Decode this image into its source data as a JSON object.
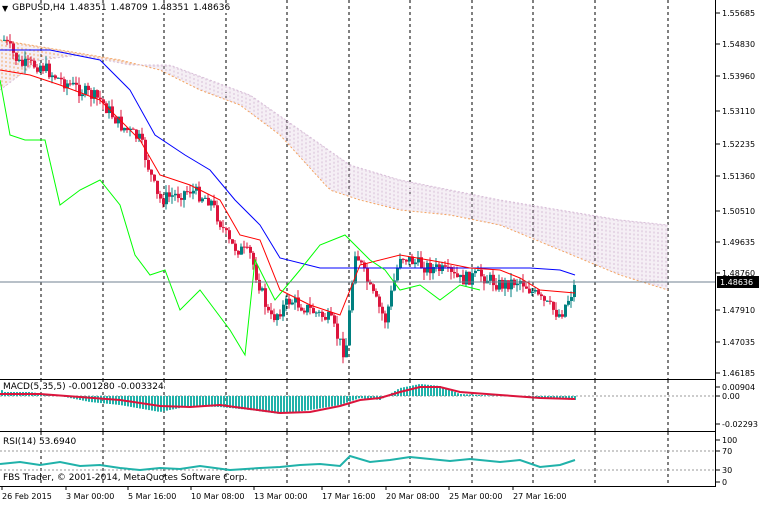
{
  "main": {
    "header": {
      "symbol": "GBPUSD,H4",
      "open": "1.48351",
      "high": "1.48709",
      "low": "1.48351",
      "close": "1.48636"
    },
    "price_levels": [
      "1.55685",
      "1.54830",
      "1.53960",
      "1.53110",
      "1.52235",
      "1.51360",
      "1.50510",
      "1.49635",
      "1.48760",
      "1.47910",
      "1.47035",
      "1.46185"
    ],
    "current_price": "1.48636"
  },
  "macd": {
    "label": "MACD(5,35,5) -0.001280 -0.003324",
    "levels": [
      "0.00904",
      "0.00",
      "-0.02293"
    ]
  },
  "rsi": {
    "label": "RSI(14) 53.6940",
    "levels": [
      "100",
      "70",
      "30",
      "0"
    ]
  },
  "copyright": "FBS Trader, © 2001-2014, MetaQuotes Software Corp.",
  "time_axis": [
    "26 Feb 2015",
    "3 Mar 00:00",
    "5 Mar 16:00",
    "10 Mar 08:00",
    "13 Mar 00:00",
    "17 Mar 16:00",
    "20 Mar 08:00",
    "25 Mar 00:00",
    "27 Mar 16:00"
  ],
  "colors": {
    "background": "#ffffff",
    "bull_candle": "#008080",
    "bear_candle": "#dc143c",
    "tenkan": "#ff0000",
    "kijun": "#0000ff",
    "chikou": "#00ff00",
    "cloud_a": "#f4a460",
    "cloud_b": "#d8bfd8",
    "macd_hist": "#20b2aa",
    "macd_signal": "#dc143c",
    "rsi_line": "#20b2aa",
    "price_line": "#708090"
  }
}
